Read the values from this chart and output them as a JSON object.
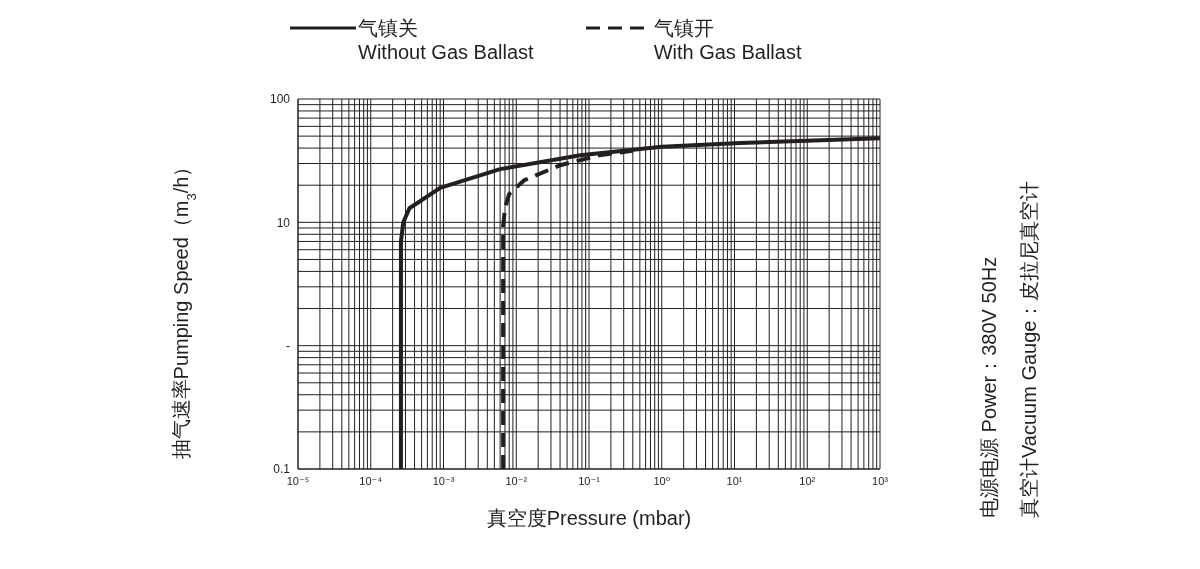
{
  "chart_data": {
    "type": "line",
    "xlabel": "真空度Pressure (mbar)",
    "ylabel": "抽气速率Pumping Speed（m$_{3}$/h）",
    "log": "xy",
    "grid": true,
    "legend": "top",
    "marker": "none",
    "xlim": [
      1e-05,
      1000
    ],
    "ylim": [
      0.1,
      100
    ],
    "xticks": [
      {
        "value": 1e-05,
        "label": "10⁻⁵"
      },
      {
        "value": 0.0001,
        "label": "10⁻⁴"
      },
      {
        "value": 0.001,
        "label": "10⁻³"
      },
      {
        "value": 0.01,
        "label": "10⁻²"
      },
      {
        "value": 0.1,
        "label": "10⁻¹"
      },
      {
        "value": 1,
        "label": "10⁰"
      },
      {
        "value": 10,
        "label": "10¹"
      },
      {
        "value": 100,
        "label": "10²"
      },
      {
        "value": 1000,
        "label": "10³"
      }
    ],
    "yticks": [
      0.1,
      {
        "value": 1,
        "label": "-"
      },
      10,
      100
    ],
    "annotations": [
      "电源电源  Power：380V 50Hz",
      "真空计Vacuum Gauge：皮拉尼真空计"
    ],
    "series": [
      {
        "name": "气镇关\nWithout Gas Ballast",
        "color": "#231f20",
        "line_style": "solid",
        "x": [
          0.00026,
          0.00026,
          0.00026,
          0.00028,
          0.00034,
          0.0009,
          0.006,
          0.076,
          1,
          12,
          1000
        ],
        "values": [
          0.1,
          1,
          7,
          10,
          13,
          19,
          27,
          35,
          41,
          44,
          48
        ]
      },
      {
        "name": "气镇开\nWith Gas Ballast",
        "color": "#231f20",
        "line_style": "dashed",
        "x": [
          0.0066,
          0.0066,
          0.0066,
          0.007,
          0.008,
          0.013,
          0.04,
          0.14,
          0.4
        ],
        "values": [
          0.1,
          1,
          9.3,
          13,
          17,
          22,
          29,
          35,
          38
        ]
      }
    ]
  }
}
